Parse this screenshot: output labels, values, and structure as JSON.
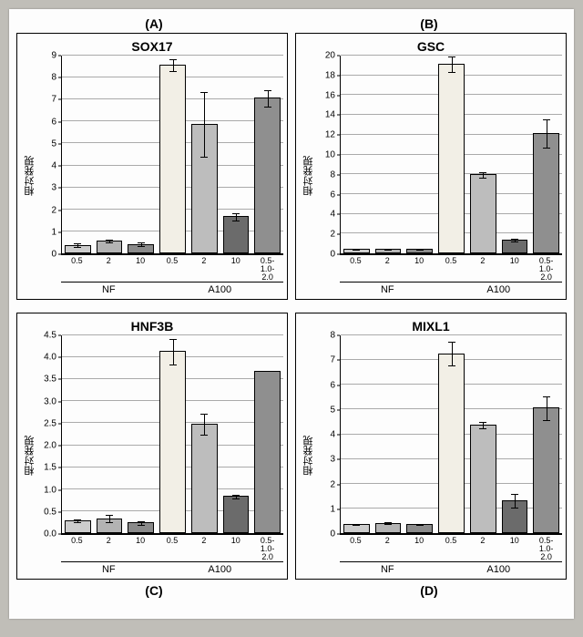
{
  "labels_top": [
    "(A)",
    "(B)"
  ],
  "labels_bottom": [
    "(C)",
    "(D)"
  ],
  "common": {
    "ylabel": "相対発現",
    "x_categories": [
      "0.5",
      "2",
      "10",
      "0.5",
      "2",
      "10",
      "0.5-\n1.0-\n2.0"
    ],
    "groups": [
      {
        "label": "NF",
        "span": 3
      },
      {
        "label": "A100",
        "span": 4
      }
    ],
    "fills": [
      "#cccccc",
      "#b3b3b3",
      "#8a8a8a",
      "#f2efe6",
      "#bdbdbd",
      "#6b6b6b",
      "#8f8f8f"
    ],
    "grid_color": "#aaaaaa",
    "background": "#ffffff"
  },
  "panels": [
    {
      "title": "SOX17",
      "ymax": 9,
      "ytick_step": 1,
      "values": [
        0.3,
        0.5,
        0.35,
        8.5,
        5.8,
        1.6,
        7.0
      ],
      "errors": [
        0.1,
        0.1,
        0.1,
        0.3,
        1.5,
        0.2,
        0.4
      ]
    },
    {
      "title": "GSC",
      "ymax": 20,
      "ytick_step": 2,
      "values": [
        0.3,
        0.3,
        0.3,
        19.0,
        7.8,
        1.2,
        12.0
      ],
      "errors": [
        0.1,
        0.1,
        0.1,
        0.8,
        0.3,
        0.2,
        1.5
      ]
    },
    {
      "title": "HNF3B",
      "ymax": 4.5,
      "ytick_step": 0.5,
      "values": [
        0.25,
        0.3,
        0.2,
        4.1,
        2.45,
        0.8,
        3.65
      ],
      "errors": [
        0.05,
        0.1,
        0.05,
        0.3,
        0.25,
        0.05,
        0
      ]
    },
    {
      "title": "MIXL1",
      "ymax": 8,
      "ytick_step": 1,
      "values": [
        0.3,
        0.35,
        0.3,
        7.2,
        4.3,
        1.25,
        5.0
      ],
      "errors": [
        0.05,
        0.05,
        0.05,
        0.5,
        0.15,
        0.3,
        0.5
      ]
    }
  ]
}
